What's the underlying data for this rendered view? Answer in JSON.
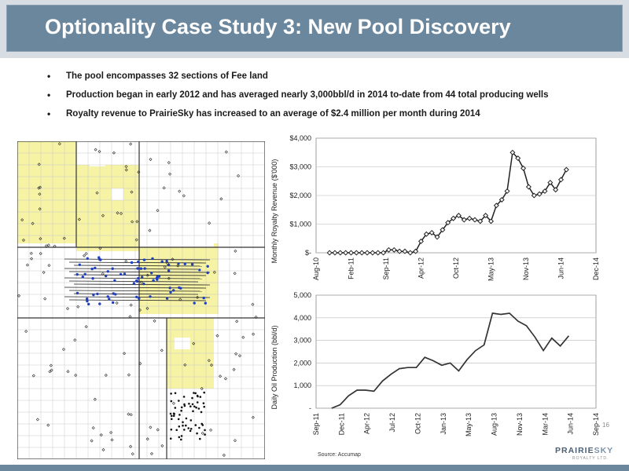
{
  "header": {
    "title": "Optionality Case Study 3: New Pool Discovery"
  },
  "bullets": [
    "The pool encompasses 32 sections of Fee land",
    "Production began in early 2012 and has averaged nearly 3,000bbl/d in 2014 to-date from 44 total producing wells",
    "Royalty revenue to PrairieSky has increased to an average of $2.4 million per month during 2014"
  ],
  "footer": {
    "source": "Source: Accumap",
    "page_number": "16"
  },
  "logo": {
    "part1": "PRAIRIE",
    "part2": "SKY",
    "sub": "ROYALTY LTD."
  },
  "colors": {
    "title_bar": "#6b879d",
    "land_highlight": "#f6f3a4",
    "well_marker": "#1f3fbf",
    "line": "#222222"
  },
  "chart_data": [
    {
      "type": "line",
      "ylabel": "Monthly Royalty Revenue ($'000)",
      "x_ticks": [
        "Aug-10",
        "Feb-11",
        "Sep-11",
        "Apr-12",
        "Oct-12",
        "May-13",
        "Nov-13",
        "Jun-14",
        "Dec-14"
      ],
      "y_ticks": [
        "$-",
        "$1,000",
        "$2,000",
        "$3,000",
        "$4,000"
      ],
      "ylim": [
        0,
        4000
      ],
      "markers": "diamond-open",
      "grid": true,
      "series": [
        {
          "values": [
            0,
            0,
            0,
            0,
            0,
            0,
            0,
            0,
            0,
            0,
            0,
            100,
            100,
            50,
            50,
            0,
            50,
            400,
            650,
            700,
            550,
            800,
            1050,
            1200,
            1300,
            1150,
            1200,
            1150,
            1100,
            1300,
            1100,
            1650,
            1850,
            2150,
            3500,
            3300,
            2950,
            2300,
            2000,
            2050,
            2150,
            2450,
            2200,
            2550,
            2900
          ]
        }
      ]
    },
    {
      "type": "line",
      "ylabel": "Daily Oil Production (bbl/d)",
      "x_ticks": [
        "Sep-11",
        "Dec-11",
        "Apr-12",
        "Jul-12",
        "Oct-12",
        "Jan-13",
        "May-13",
        "Aug-13",
        "Nov-13",
        "Mar-14",
        "Jun-14",
        "Sep-14"
      ],
      "y_ticks": [
        "-",
        "1,000",
        "2,000",
        "3,000",
        "4,000",
        "5,000"
      ],
      "ylim": [
        0,
        5000
      ],
      "grid": true,
      "series": [
        {
          "values": [
            0,
            150,
            550,
            800,
            800,
            750,
            1200,
            1500,
            1750,
            1800,
            1800,
            2250,
            2100,
            1900,
            2000,
            1650,
            2150,
            2550,
            2800,
            4200,
            4150,
            4200,
            3850,
            3650,
            3150,
            2550,
            3100,
            2750,
            3200
          ]
        }
      ]
    }
  ]
}
